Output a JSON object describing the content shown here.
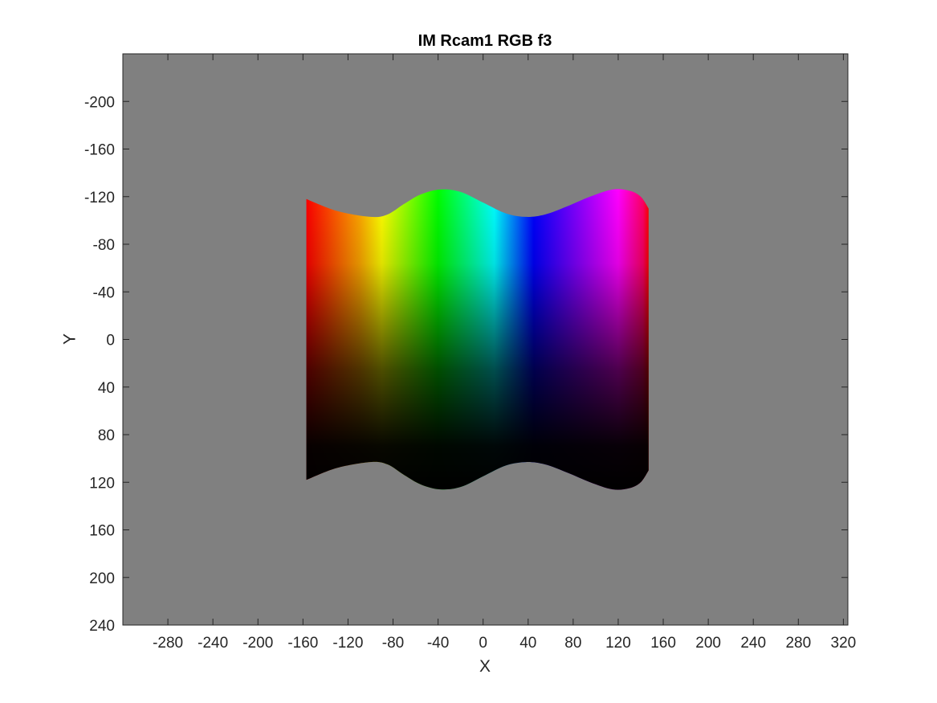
{
  "chart_data": {
    "type": "heatmap",
    "title": "IM Rcam1 RGB f3",
    "xlabel": "X",
    "ylabel": "Y",
    "xlim": [
      -320,
      324
    ],
    "ylim": [
      -240,
      240
    ],
    "y_direction": "reversed",
    "x_ticks": [
      -280,
      -240,
      -200,
      -160,
      -120,
      -80,
      -40,
      0,
      40,
      80,
      120,
      160,
      200,
      240,
      280,
      320
    ],
    "y_ticks": [
      -200,
      -160,
      -120,
      -80,
      -40,
      0,
      40,
      80,
      120,
      160,
      200,
      240
    ],
    "background_color": "#808080",
    "grid": false,
    "image": {
      "description_colormap": "hue varies along x, brightness decreases along y",
      "x_extent": [
        -157,
        147
      ],
      "left_edge_half_height": 118,
      "boundary_half_height": [
        {
          "x": -157,
          "h": 118
        },
        {
          "x": -130,
          "h": 108
        },
        {
          "x": -100,
          "h": 103
        },
        {
          "x": -85,
          "h": 105
        },
        {
          "x": -70,
          "h": 114
        },
        {
          "x": -55,
          "h": 122
        },
        {
          "x": -38,
          "h": 126
        },
        {
          "x": -20,
          "h": 124
        },
        {
          "x": 0,
          "h": 115
        },
        {
          "x": 20,
          "h": 106
        },
        {
          "x": 38,
          "h": 103
        },
        {
          "x": 55,
          "h": 105
        },
        {
          "x": 75,
          "h": 112
        },
        {
          "x": 95,
          "h": 120
        },
        {
          "x": 115,
          "h": 126
        },
        {
          "x": 130,
          "h": 125
        },
        {
          "x": 140,
          "h": 120
        },
        {
          "x": 147,
          "h": 110
        }
      ],
      "hue_stops": [
        {
          "x": -157,
          "color": "#ff0000"
        },
        {
          "x": -110,
          "color": "#ffa500"
        },
        {
          "x": -90,
          "color": "#ffff00"
        },
        {
          "x": -40,
          "color": "#00ff00"
        },
        {
          "x": 10,
          "color": "#00ffff"
        },
        {
          "x": 45,
          "color": "#0000ff"
        },
        {
          "x": 120,
          "color": "#ff00ff"
        },
        {
          "x": 142,
          "color": "#ff0066"
        },
        {
          "x": 147,
          "color": "#ff0000"
        }
      ]
    }
  }
}
